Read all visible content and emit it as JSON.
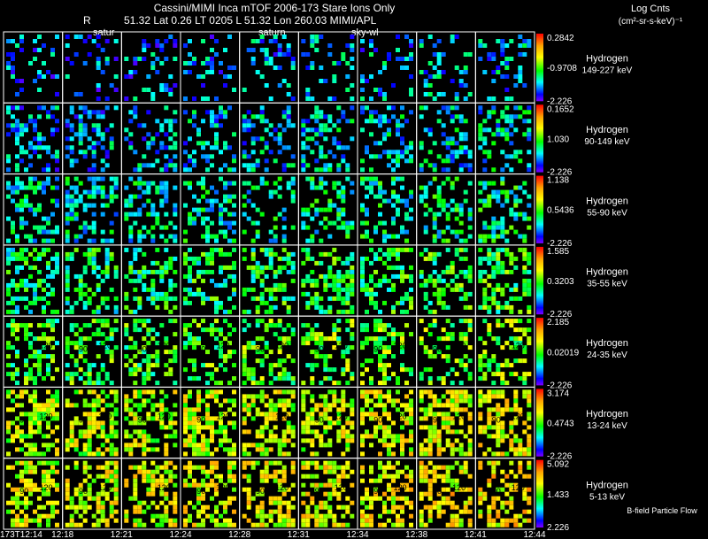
{
  "header": {
    "title": "Cassini/MIMI Inca mTOF  2006-173   Stare    Ions Only",
    "r_label": "R",
    "ephemeris": "51.32 Lat 0.26 LT 0205 L          51.32 Lon          260.03  MIMI/APL",
    "marker_saturn_left": "satur",
    "marker_saturn_mid": "saturn",
    "marker_sky": "sky-wl",
    "units_label": "Log Cnts",
    "units_sub": "(cm²-sr-s-keV)⁻¹"
  },
  "footer": {
    "bfield_label": "B-field Particle Flow"
  },
  "colors": {
    "background": "#000000",
    "grid": "#ffffff",
    "colorbar": [
      "#ff0000",
      "#ffa500",
      "#ffff00",
      "#00ff00",
      "#00ffff",
      "#0000ff",
      "#8000ff"
    ]
  },
  "chart_data": {
    "type": "heatmap",
    "time_labels": [
      "173T12:14",
      "12:18",
      "12:21",
      "12:24",
      "12:28",
      "12:31",
      "12:34",
      "12:38",
      "12:41",
      "12:44"
    ],
    "angle_labels": [
      "90",
      "120"
    ],
    "panels": [
      {
        "species": "Hydrogen",
        "energy": "149-227 keV",
        "cmax": "0.2842",
        "cmid": "-0.9708",
        "cmin": "-2.226",
        "level": 0.18,
        "density": 0.22
      },
      {
        "species": "Hydrogen",
        "energy": "90-149 keV",
        "cmax": "0.1652",
        "cmid": "1.030",
        "cmin": "-2.226",
        "level": 0.22,
        "density": 0.35
      },
      {
        "species": "Hydrogen",
        "energy": "55-90 keV",
        "cmax": "1.138",
        "cmid": "0.5436",
        "cmin": "-2.226",
        "level": 0.3,
        "density": 0.38
      },
      {
        "species": "Hydrogen",
        "energy": "35-55 keV",
        "cmax": "1.585",
        "cmid": "0.3203",
        "cmin": "-2.226",
        "level": 0.38,
        "density": 0.45
      },
      {
        "species": "Hydrogen",
        "energy": "24-35 keV",
        "cmax": "2.185",
        "cmid": "0.02019",
        "cmin": "-2.226",
        "level": 0.45,
        "density": 0.42
      },
      {
        "species": "Hydrogen",
        "energy": "13-24 keV",
        "cmax": "3.174",
        "cmid": "0.4743",
        "cmin": "-2.226",
        "level": 0.58,
        "density": 0.55
      },
      {
        "species": "Hydrogen",
        "energy": "5-13 keV",
        "cmax": "5.092",
        "cmid": "1.433",
        "cmin": "2.226",
        "level": 0.62,
        "density": 0.5
      }
    ]
  }
}
